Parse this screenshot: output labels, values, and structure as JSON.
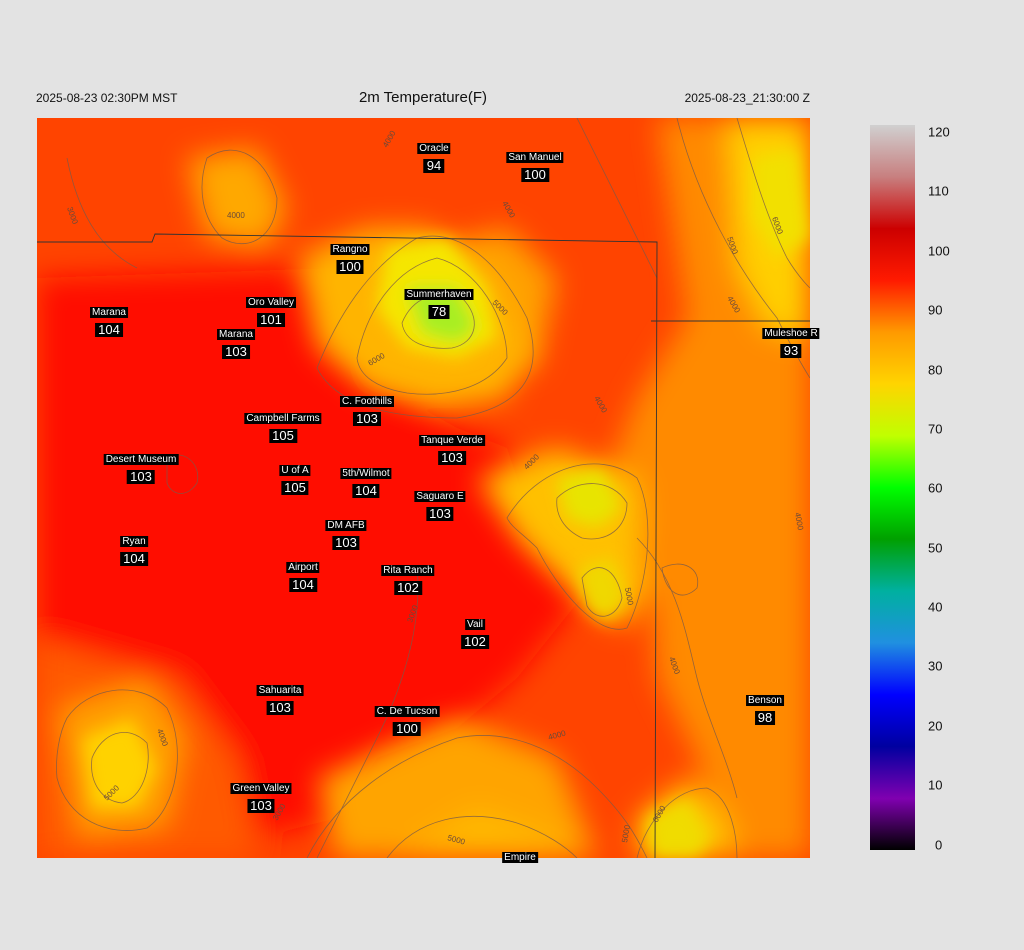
{
  "header": {
    "valid_local": "2025-08-23 02:30PM MST",
    "title": "2m Temperature(F)",
    "valid_utc": "2025-08-23_21:30:00 Z"
  },
  "stations": [
    {
      "name": "Oracle",
      "value": "94"
    },
    {
      "name": "San Manuel",
      "value": "100"
    },
    {
      "name": "Rangno",
      "value": "100"
    },
    {
      "name": "Summerhaven",
      "value": "78"
    },
    {
      "name": "Oro Valley",
      "value": "101"
    },
    {
      "name": "Marana",
      "value": "104"
    },
    {
      "name": "Marana",
      "value": "103"
    },
    {
      "name": "Muleshoe R",
      "value": "93"
    },
    {
      "name": "C. Foothills",
      "value": "103"
    },
    {
      "name": "Campbell Farms",
      "value": "105"
    },
    {
      "name": "Tanque Verde",
      "value": "103"
    },
    {
      "name": "Desert Museum",
      "value": "103"
    },
    {
      "name": "U of A",
      "value": "105"
    },
    {
      "name": "5th/Wilmot",
      "value": "104"
    },
    {
      "name": "Saguaro E",
      "value": "103"
    },
    {
      "name": "DM AFB",
      "value": "103"
    },
    {
      "name": "Ryan",
      "value": "104"
    },
    {
      "name": "Airport",
      "value": "104"
    },
    {
      "name": "Rita Ranch",
      "value": "102"
    },
    {
      "name": "Vail",
      "value": "102"
    },
    {
      "name": "Sahuarita",
      "value": "103"
    },
    {
      "name": "C. De Tucson",
      "value": "100"
    },
    {
      "name": "Benson",
      "value": "98"
    },
    {
      "name": "Green Valley",
      "value": "103"
    },
    {
      "name": "Empire",
      "value": ""
    }
  ],
  "contour_labels": [
    "3000",
    "4000",
    "5000",
    "6000"
  ],
  "colorbar": {
    "ticks": [
      "120",
      "110",
      "100",
      "90",
      "80",
      "70",
      "60",
      "50",
      "40",
      "30",
      "20",
      "10",
      "0"
    ],
    "colors": [
      "#d0d0d0",
      "#c88080",
      "#cc0000",
      "#ff1a00",
      "#ff9a00",
      "#ffd400",
      "#c0ff00",
      "#00ff00",
      "#00a000",
      "#00b0a0",
      "#2090e0",
      "#0000ff",
      "#0000a0",
      "#8000b0",
      "#000000"
    ]
  }
}
